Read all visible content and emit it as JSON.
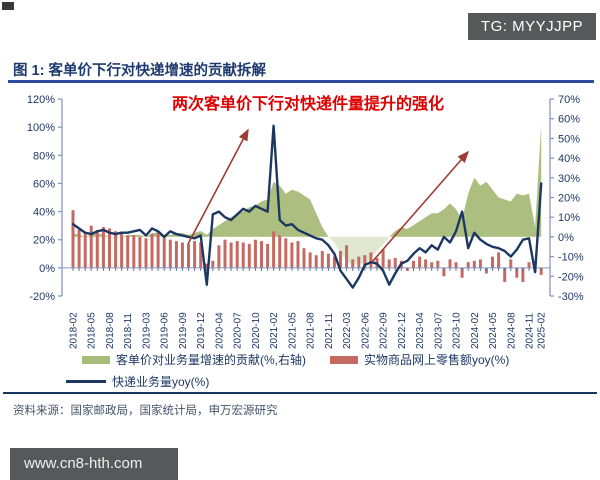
{
  "watermarks": {
    "tg": "TG: MYYJJPP",
    "site": "www.cn8-hth.com"
  },
  "figure": {
    "title": "图 1: 客单价下行对快递增速的贡献拆解"
  },
  "annotation": {
    "text": "两次客单价下行对快递件量提升的强化"
  },
  "source": {
    "text": "资料来源：国家邮政局，国家统计局，申万宏源研究"
  },
  "chart_data": {
    "type": "combo",
    "title": "客单价下行对快递增速的贡献拆解",
    "n_points": 78,
    "x_note": "monthly points Feb2018–Feb2025 (Jan omitted), tick labels every 3rd point",
    "x_tick_labels": [
      "2018-02",
      "2018-05",
      "2018-08",
      "2018-11",
      "2019-03",
      "2019-06",
      "2019-09",
      "2019-12",
      "2020-04",
      "2020-07",
      "2020-10",
      "2021-02",
      "2021-05",
      "2021-08",
      "2021-11",
      "2022-03",
      "2022-06",
      "2022-09",
      "2022-12",
      "2023-04",
      "2023-07",
      "2023-10",
      "2024-02",
      "2024-05",
      "2024-08",
      "2024-11",
      "2025-02"
    ],
    "axes": {
      "left": {
        "min": -20,
        "max": 120,
        "step": 20,
        "tick_labels": [
          "120%",
          "100%",
          "80%",
          "60%",
          "40%",
          "20%",
          "0%",
          "-20%"
        ]
      },
      "right": {
        "min": -30,
        "max": 70,
        "step": 10,
        "tick_labels": [
          "70%",
          "60%",
          "50%",
          "40%",
          "30%",
          "20%",
          "10%",
          "0%",
          "-10%",
          "-20%",
          "-30%"
        ]
      }
    },
    "series": [
      {
        "name": "客单价对业务量增速的贡献(%,右轴)",
        "type": "area",
        "axis": "right",
        "color": "#a8bc7a",
        "values": [
          2,
          1,
          0,
          1,
          2,
          1,
          0,
          -1,
          0,
          1,
          1,
          1,
          0,
          2,
          2,
          1,
          1,
          2,
          2,
          1,
          2,
          3,
          1,
          4,
          6,
          8,
          10,
          12,
          13,
          15,
          16,
          18,
          19,
          28,
          26,
          22,
          24,
          23,
          21,
          19,
          12,
          5,
          0,
          -3,
          -8,
          -12,
          -15,
          -13,
          -14,
          -11,
          -7,
          -4,
          0,
          3,
          5,
          4,
          6,
          8,
          10,
          12,
          12,
          14,
          17,
          14,
          9,
          22,
          30,
          26,
          28,
          24,
          20,
          19,
          18,
          22,
          21,
          22,
          5,
          57
        ]
      },
      {
        "name": "实物商品网上零售额yoy(%)",
        "type": "bar",
        "axis": "left",
        "color": "#c56a62",
        "values": [
          41,
          27,
          25,
          30,
          27,
          29,
          28,
          26,
          25,
          23,
          23,
          22,
          21,
          24,
          26,
          22,
          20,
          19,
          18,
          17,
          19,
          18,
          3,
          5,
          16,
          20,
          18,
          19,
          18,
          17,
          20,
          19,
          17,
          26,
          23,
          21,
          18,
          19,
          14,
          11,
          9,
          12,
          10,
          8,
          12,
          16,
          6,
          8,
          9,
          11,
          7,
          13,
          6,
          7,
          5,
          -2,
          5,
          8,
          6,
          4,
          5,
          -6,
          6,
          4,
          -7,
          4,
          5,
          6,
          -4,
          8,
          11,
          -10,
          6,
          -7,
          -10,
          4,
          -3,
          -5
        ]
      },
      {
        "name": "快递业务量yoy(%)",
        "type": "line",
        "axis": "left",
        "color": "#1c3761",
        "values": [
          31,
          28,
          25,
          24,
          26,
          27,
          25,
          24,
          25,
          25,
          26,
          27,
          23,
          28,
          26,
          22,
          26,
          24,
          23,
          22,
          21,
          23,
          -12,
          38,
          40,
          36,
          34,
          38,
          42,
          40,
          44,
          42,
          40,
          101,
          34,
          30,
          31,
          27,
          25,
          23,
          21,
          20,
          16,
          10,
          -2,
          -8,
          -14,
          -7,
          2,
          4,
          3,
          -2,
          -12,
          -4,
          3,
          5,
          10,
          14,
          11,
          16,
          13,
          22,
          18,
          26,
          40,
          14,
          25,
          20,
          17,
          15,
          14,
          12,
          8,
          13,
          20,
          21,
          -3,
          60
        ]
      }
    ],
    "annotation_arrows": [
      {
        "from": [
          188,
          159
        ],
        "to": [
          248,
          45
        ]
      },
      {
        "from": [
          372,
          177
        ],
        "to": [
          468,
          67
        ]
      }
    ],
    "style": {
      "arrow_color": "#9e3b33",
      "axis_text_color": "#1f3864",
      "axis_line_color": "#8899bb"
    }
  }
}
